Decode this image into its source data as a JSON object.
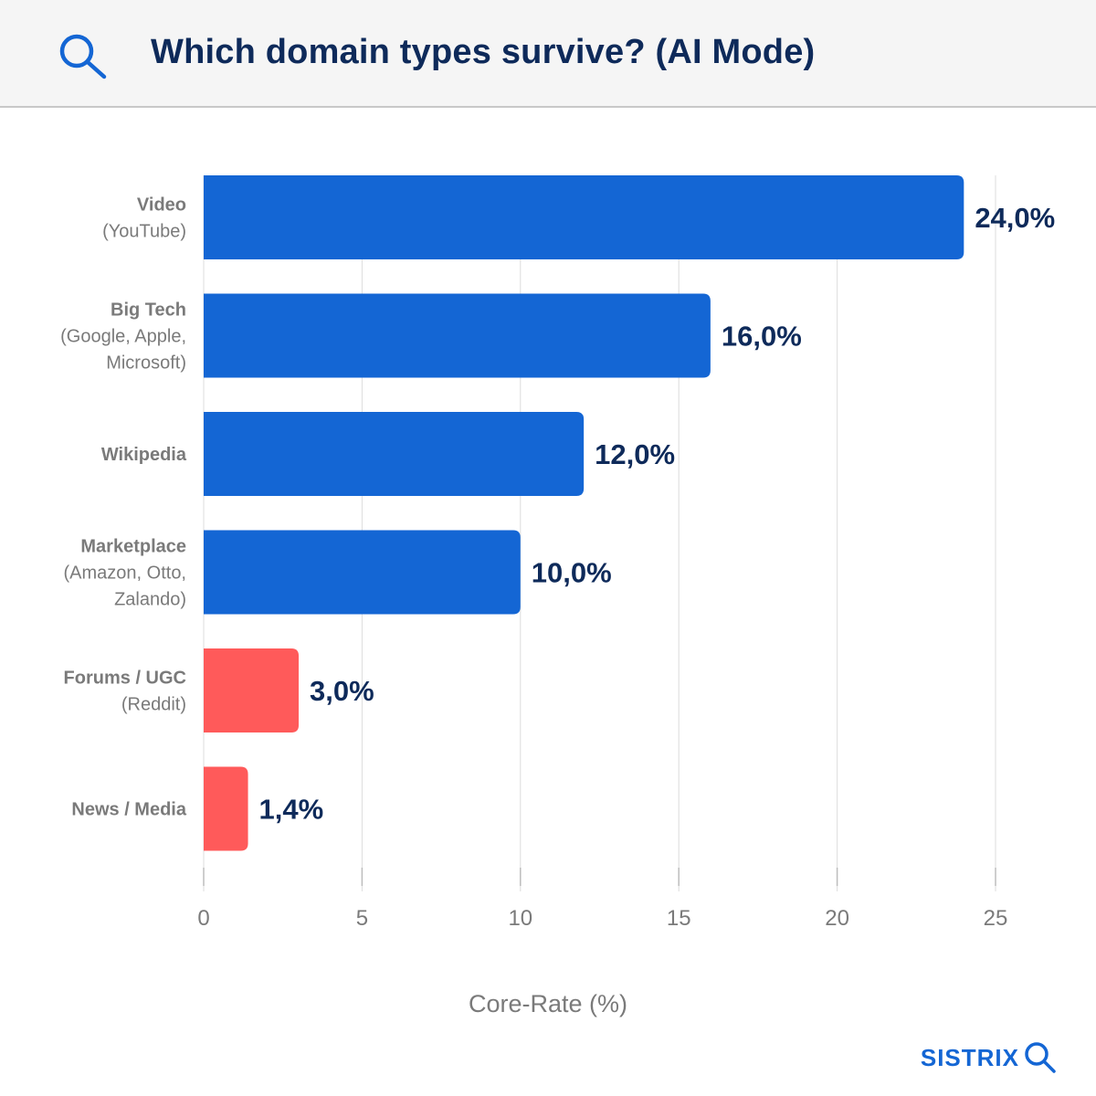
{
  "header": {
    "title": "Which domain types survive? (AI Mode)",
    "icon": "search-icon"
  },
  "chart_data": {
    "type": "bar",
    "orientation": "horizontal",
    "categories": [
      {
        "name": "Video",
        "sub": [
          "(YouTube)"
        ]
      },
      {
        "name": "Big Tech",
        "sub": [
          "(Google, Apple,",
          "Microsoft)"
        ]
      },
      {
        "name": "Wikipedia",
        "sub": []
      },
      {
        "name": "Marketplace",
        "sub": [
          "(Amazon, Otto,",
          "Zalando)"
        ]
      },
      {
        "name": "Forums / UGC",
        "sub": [
          "(Reddit)"
        ]
      },
      {
        "name": "News / Media",
        "sub": []
      }
    ],
    "values": [
      24.0,
      16.0,
      12.0,
      10.0,
      3.0,
      1.4
    ],
    "value_labels": [
      "24,0%",
      "16,0%",
      "12,0%",
      "10,0%",
      "3,0%",
      "1,4%"
    ],
    "bar_colors": [
      "#1466d4",
      "#1466d4",
      "#1466d4",
      "#1466d4",
      "#ff5a5a",
      "#ff5a5a"
    ],
    "xlabel": "Core-Rate (%)",
    "ylabel": "",
    "xlim": [
      0,
      25
    ],
    "xticks": [
      0,
      5,
      10,
      15,
      20,
      25
    ],
    "grid": true
  },
  "footer": {
    "brand": "SISTRIX",
    "icon": "search-icon"
  }
}
